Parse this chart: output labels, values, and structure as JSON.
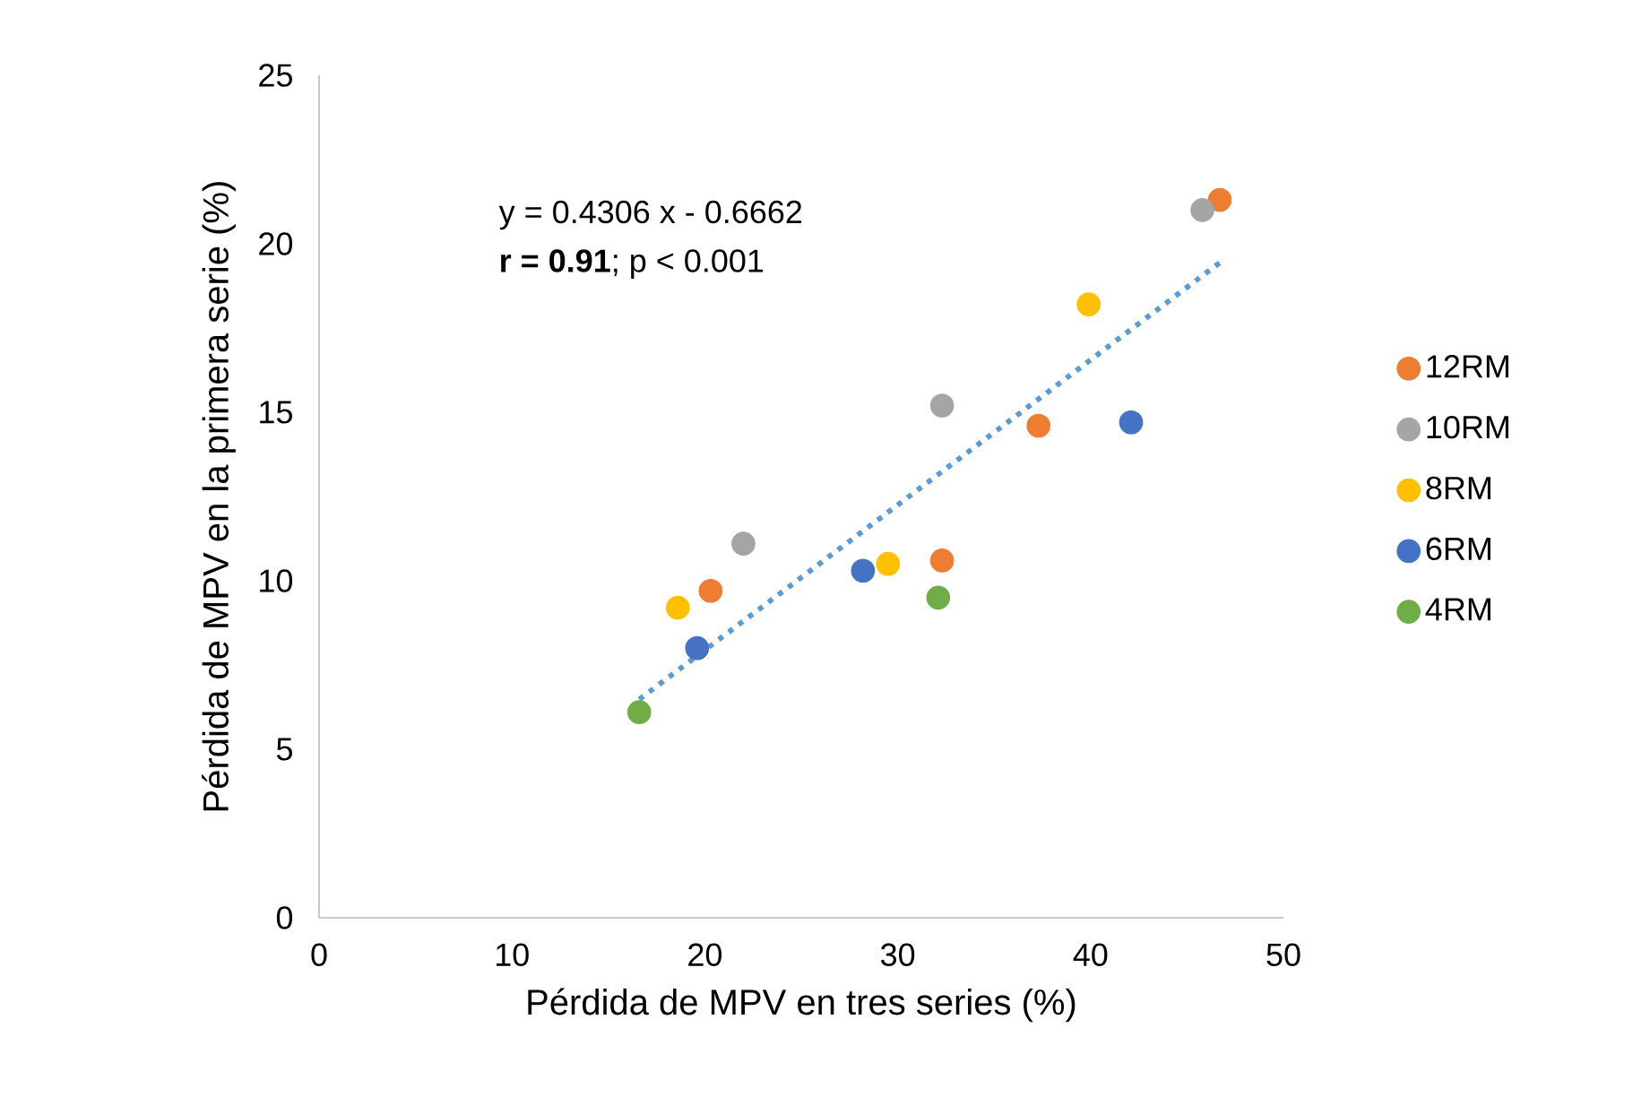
{
  "chart_data": {
    "type": "scatter",
    "xlabel": "Pérdida de MPV en tres series (%)",
    "ylabel": "Pérdida de MPV en la primera serie (%)",
    "xlim": [
      0,
      50
    ],
    "ylim": [
      0,
      25
    ],
    "xticks": [
      0,
      10,
      20,
      30,
      40,
      50
    ],
    "yticks": [
      0,
      5,
      10,
      15,
      20,
      25
    ],
    "grid": false,
    "legend": "right",
    "marker": "circle",
    "annotations": [
      "y = 0.4306 x - 0.6662",
      "**r = 0.91**; p < 0.001"
    ],
    "series": [
      {
        "name": "12RM",
        "color": "#ed7d31",
        "x": [
          46.7,
          37.3,
          32.3,
          20.3
        ],
        "values": [
          21.3,
          14.6,
          10.6,
          9.7
        ]
      },
      {
        "name": "10RM",
        "color": "#a5a5a5",
        "x": [
          45.8,
          32.3,
          22.0
        ],
        "values": [
          21.0,
          15.2,
          11.1
        ]
      },
      {
        "name": "8RM",
        "color": "#ffc000",
        "x": [
          39.9,
          29.5,
          18.6
        ],
        "values": [
          18.2,
          10.5,
          9.2
        ]
      },
      {
        "name": "6RM",
        "color": "#4472c4",
        "x": [
          42.1,
          28.2,
          19.6
        ],
        "values": [
          14.7,
          10.3,
          8.0
        ]
      },
      {
        "name": "4RM",
        "color": "#70ad47",
        "x": [
          32.1,
          16.6
        ],
        "values": [
          9.5,
          6.1
        ]
      },
      {
        "type": "line",
        "color": "#5b9bd5",
        "line_style": "dotted",
        "marker": "none",
        "x": [
          16.6,
          46.7
        ],
        "values": [
          6.48,
          19.44
        ]
      }
    ]
  }
}
